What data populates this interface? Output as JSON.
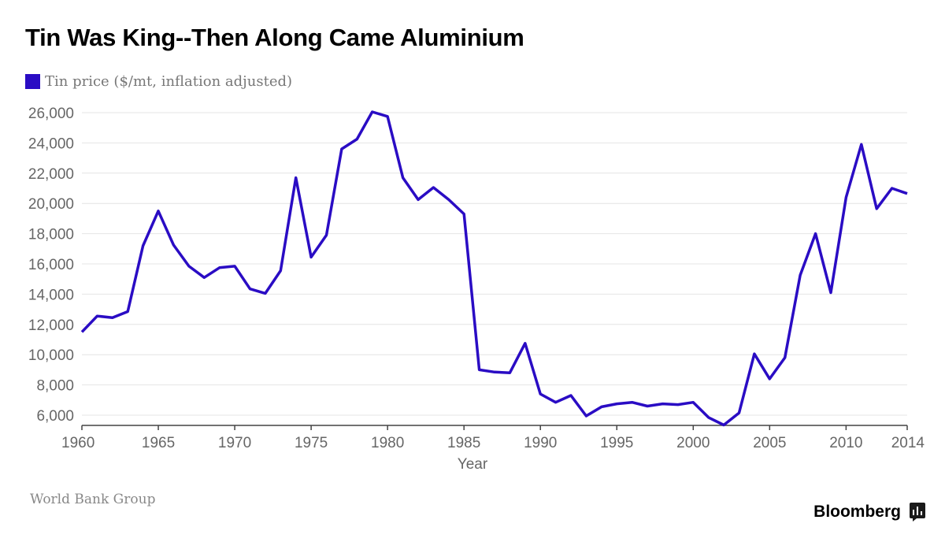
{
  "title": "Tin Was King--Then Along Came Aluminium",
  "source": "World Bank Group",
  "brand": "Bloomberg",
  "brand_icon": "bloomberg-terminal-icon",
  "colors": {
    "series": "#2a0cc4",
    "grid": "#e4e4e4",
    "axis": "#444444",
    "tick_text": "#666666"
  },
  "chart_data": {
    "type": "line",
    "title": "Tin Was King--Then Along Came Aluminium",
    "xlabel": "Year",
    "ylabel": "",
    "xlim": [
      1960,
      2014
    ],
    "ylim": [
      5300,
      26000
    ],
    "x_ticks": [
      1960,
      1965,
      1970,
      1975,
      1980,
      1985,
      1990,
      1995,
      2000,
      2005,
      2010,
      2014
    ],
    "x_tick_labels": [
      "1960",
      "1965",
      "1970",
      "1975",
      "1980",
      "1985",
      "1990",
      "1995",
      "2000",
      "2005",
      "2010",
      "2014"
    ],
    "y_ticks": [
      6000,
      8000,
      10000,
      12000,
      14000,
      16000,
      18000,
      20000,
      22000,
      24000,
      26000
    ],
    "y_tick_labels": [
      "6,000",
      "8,000",
      "10,000",
      "12,000",
      "14,000",
      "16,000",
      "18,000",
      "20,000",
      "22,000",
      "24,000",
      "26,000"
    ],
    "grid": "horizontal",
    "legend": "top-left",
    "series": [
      {
        "name": "Tin price ($/mt, inflation adjusted)",
        "x": [
          1960,
          1961,
          1962,
          1963,
          1964,
          1965,
          1966,
          1967,
          1968,
          1969,
          1970,
          1971,
          1972,
          1973,
          1974,
          1975,
          1976,
          1977,
          1978,
          1979,
          1980,
          1981,
          1982,
          1983,
          1984,
          1985,
          1986,
          1987,
          1988,
          1989,
          1990,
          1991,
          1992,
          1993,
          1994,
          1995,
          1996,
          1997,
          1998,
          1999,
          2000,
          2001,
          2002,
          2003,
          2004,
          2005,
          2006,
          2007,
          2008,
          2009,
          2010,
          2011,
          2012,
          2013,
          2014
        ],
        "values": [
          11500,
          12550,
          12450,
          12850,
          17200,
          19500,
          17250,
          15850,
          15100,
          15750,
          15850,
          14350,
          14050,
          15550,
          21700,
          16450,
          17900,
          23600,
          24250,
          26050,
          25750,
          21700,
          20250,
          21050,
          20250,
          19300,
          9000,
          8850,
          8800,
          10750,
          7400,
          6850,
          7300,
          5950,
          6550,
          6750,
          6850,
          6600,
          6750,
          6700,
          6850,
          5850,
          5350,
          6150,
          10050,
          8400,
          9800,
          15250,
          18000,
          14100,
          20400,
          23900,
          19650,
          21000,
          20650
        ]
      }
    ]
  }
}
